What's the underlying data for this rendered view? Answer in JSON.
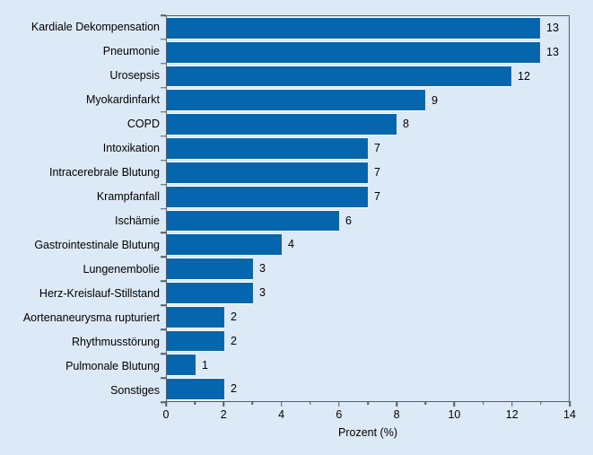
{
  "chart_data": {
    "type": "bar",
    "orientation": "horizontal",
    "categories": [
      "Kardiale Dekompensation",
      "Pneumonie",
      "Urosepsis",
      "Myokardinfarkt",
      "COPD",
      "Intoxikation",
      "Intracerebrale Blutung",
      "Krampfanfall",
      "Ischämie",
      "Gastrointestinale Blutung",
      "Lungenembolie",
      "Herz-Kreislauf-Stillstand",
      "Aortenaneurysma rupturiert",
      "Rhythmusstörung",
      "Pulmonale Blutung",
      "Sonstiges"
    ],
    "values": [
      13,
      13,
      12,
      9,
      8,
      7,
      7,
      7,
      6,
      4,
      3,
      3,
      2,
      2,
      1,
      2
    ],
    "title": "",
    "xlabel": "Prozent (%)",
    "ylabel": "",
    "xlim": [
      0,
      14
    ],
    "x_major_ticks": [
      0,
      2,
      4,
      6,
      8,
      10,
      12,
      14
    ],
    "x_minor_ticks": [
      1,
      3,
      5,
      7,
      9,
      11,
      13
    ],
    "value_labels_shown": true,
    "grid": "off",
    "legend": "none",
    "colors": {
      "bar": "#0566ae",
      "bar_edge": "#ffffff",
      "background": "#dce9f6",
      "axis": "#515e69",
      "text": "#000000"
    }
  }
}
